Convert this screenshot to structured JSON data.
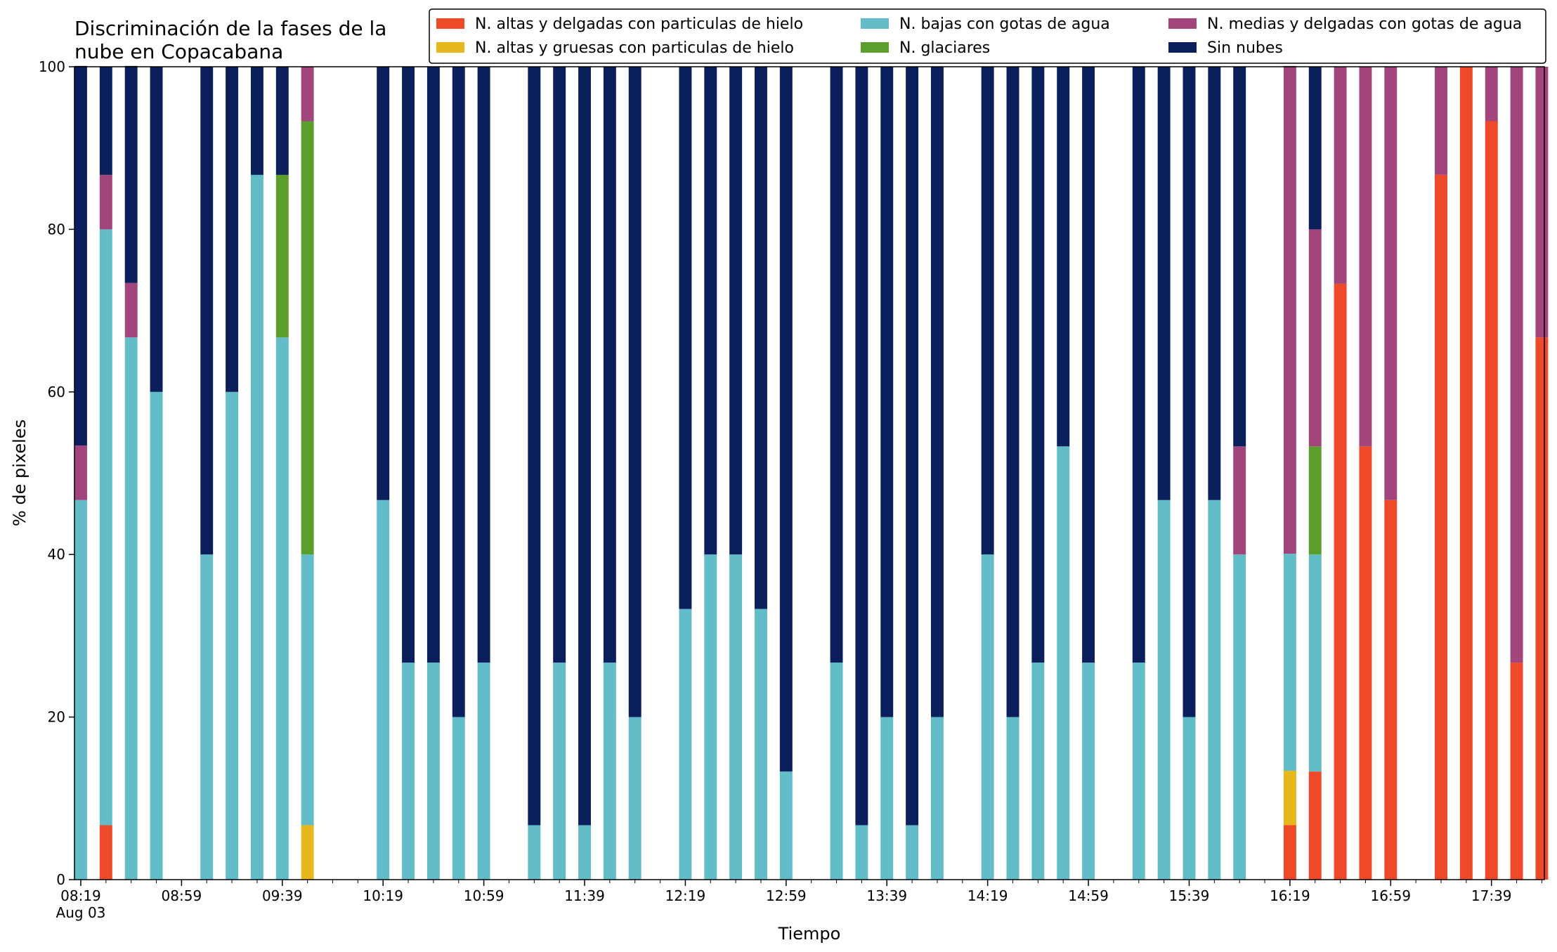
{
  "chart_data": {
    "type": "bar",
    "stacked": true,
    "title": "Discriminación de la fases de la nube en Copacabana",
    "title_lines": [
      "Discriminación de la fases de la",
      "nube en Copacabana"
    ],
    "xlabel": "Tiempo",
    "ylabel": "% de pixeles",
    "ylim": [
      0,
      100
    ],
    "yticks": [
      0,
      20,
      40,
      60,
      80,
      100
    ],
    "x_tick_labels": [
      "08:19",
      "08:59",
      "09:39",
      "10:19",
      "10:59",
      "11:39",
      "12:19",
      "12:59",
      "13:39",
      "14:19",
      "14:59",
      "15:39",
      "16:19",
      "16:59",
      "17:39"
    ],
    "x_date_label": "Aug 03",
    "minutes_per_slot": 10,
    "xlim_slots": [
      -0.25,
      58.1
    ],
    "grid": false,
    "legend": {
      "placement": "top-right",
      "columns": 3,
      "entries": [
        "N. altas y delgadas con particulas de hielo",
        "N. altas y gruesas con particulas de hielo",
        "N. bajas con gotas de agua",
        "N. glaciares",
        "N. medias y delgadas con gotas de agua",
        "Sin nubes"
      ]
    },
    "times": [
      "08:19",
      "08:29",
      "08:39",
      "08:49",
      "09:09",
      "09:19",
      "09:29",
      "09:39",
      "09:49",
      "10:19",
      "10:29",
      "10:39",
      "10:49",
      "10:59",
      "11:19",
      "11:29",
      "11:39",
      "11:49",
      "11:59",
      "12:19",
      "12:29",
      "12:39",
      "12:49",
      "12:59",
      "13:19",
      "13:29",
      "13:39",
      "13:49",
      "13:59",
      "14:19",
      "14:29",
      "14:39",
      "14:49",
      "14:59",
      "15:19",
      "15:29",
      "15:39",
      "15:49",
      "15:59",
      "16:19",
      "16:29",
      "16:39",
      "16:49",
      "16:59",
      "17:19",
      "17:29",
      "17:39",
      "17:49",
      "17:59"
    ],
    "series": [
      {
        "name": "N. altas y delgadas con particulas de hielo",
        "color": "#ee4a2a",
        "values": [
          0,
          6.7,
          0,
          0,
          0,
          0,
          0,
          0,
          0,
          0,
          0,
          0,
          0,
          0,
          0,
          0,
          0,
          0,
          0,
          0,
          0,
          0,
          0,
          0,
          0,
          0,
          0,
          0,
          0,
          0,
          0,
          0,
          0,
          0,
          0,
          0,
          0,
          0,
          0,
          6.7,
          13.3,
          73.3,
          53.3,
          46.7,
          86.7,
          100,
          93.3,
          26.7,
          66.7
        ]
      },
      {
        "name": "N. altas y gruesas con particulas de hielo",
        "color": "#e6b81c",
        "values": [
          0,
          0,
          0,
          0,
          0,
          0,
          0,
          0,
          6.7,
          0,
          0,
          0,
          0,
          0,
          0,
          0,
          0,
          0,
          0,
          0,
          0,
          0,
          0,
          0,
          0,
          0,
          0,
          0,
          0,
          0,
          0,
          0,
          0,
          0,
          0,
          0,
          0,
          0,
          0,
          6.7,
          0,
          0,
          0,
          0,
          0,
          0,
          0,
          0,
          0
        ]
      },
      {
        "name": "N. bajas con gotas de agua",
        "color": "#63bdc9",
        "values": [
          46.7,
          73.3,
          66.7,
          60,
          40,
          60,
          86.7,
          66.7,
          33.3,
          46.7,
          26.7,
          26.7,
          20,
          26.7,
          6.7,
          26.7,
          6.7,
          26.7,
          20,
          33.3,
          40,
          40,
          33.3,
          13.3,
          26.7,
          6.7,
          20,
          6.7,
          20,
          40,
          20,
          26.7,
          53.3,
          26.7,
          26.7,
          46.7,
          20,
          46.7,
          40,
          26.7,
          26.7,
          0,
          0,
          0,
          0,
          0,
          0,
          0,
          0
        ]
      },
      {
        "name": "N. glaciares",
        "color": "#5b9e2c",
        "values": [
          0,
          0,
          0,
          0,
          0,
          0,
          0,
          20,
          53.3,
          0,
          0,
          0,
          0,
          0,
          0,
          0,
          0,
          0,
          0,
          0,
          0,
          0,
          0,
          0,
          0,
          0,
          0,
          0,
          0,
          0,
          0,
          0,
          0,
          0,
          0,
          0,
          0,
          0,
          0,
          0,
          13.3,
          0,
          0,
          0,
          0,
          0,
          0,
          0,
          0
        ]
      },
      {
        "name": "N. medias y delgadas con gotas de agua",
        "color": "#a3457d",
        "values": [
          6.7,
          6.7,
          6.7,
          0,
          0,
          0,
          0,
          0,
          6.7,
          0,
          0,
          0,
          0,
          0,
          0,
          0,
          0,
          0,
          0,
          0,
          0,
          0,
          0,
          0,
          0,
          0,
          0,
          0,
          0,
          0,
          0,
          0,
          0,
          0,
          0,
          0,
          0,
          0,
          13.3,
          60,
          26.7,
          26.7,
          46.7,
          53.3,
          13.3,
          0,
          6.7,
          73.3,
          33.3
        ]
      },
      {
        "name": "Sin nubes",
        "color": "#0a1f5c",
        "values": [
          46.7,
          13.3,
          26.7,
          40,
          60,
          40,
          13.3,
          13.3,
          0,
          53.3,
          73.3,
          73.3,
          80,
          73.3,
          93.3,
          73.3,
          93.3,
          73.3,
          80,
          66.7,
          60,
          60,
          66.7,
          86.7,
          73.3,
          93.3,
          80,
          93.3,
          80,
          60,
          80,
          73.3,
          46.7,
          73.3,
          73.3,
          53.3,
          80,
          53.3,
          46.7,
          0,
          20,
          0,
          0,
          0,
          0,
          0,
          0,
          0,
          0
        ]
      }
    ]
  }
}
